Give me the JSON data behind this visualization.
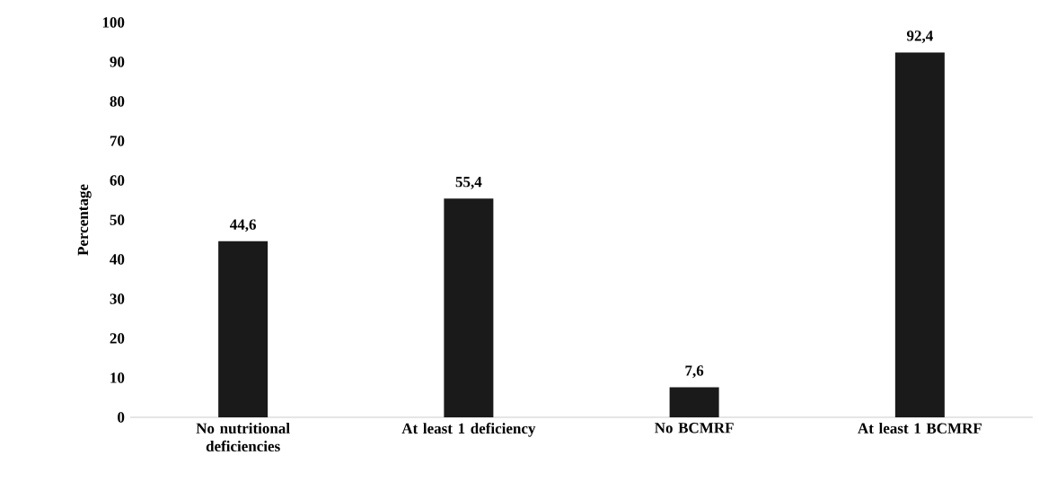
{
  "chart_data": {
    "type": "bar",
    "ylabel": "Percentage",
    "categories": [
      "No nutritional deficiencies",
      "At least 1 deficiency",
      "No BCMRF",
      "At least 1 BCMRF"
    ],
    "values": [
      44.6,
      55.4,
      7.6,
      92.4
    ],
    "value_labels": [
      "44,6",
      "55,4",
      "7,6",
      "92,4"
    ],
    "color": "#1a1a1a",
    "ylim": [
      0,
      100
    ],
    "yticks": [
      0,
      10,
      20,
      30,
      40,
      50,
      60,
      70,
      80,
      90,
      100
    ]
  }
}
